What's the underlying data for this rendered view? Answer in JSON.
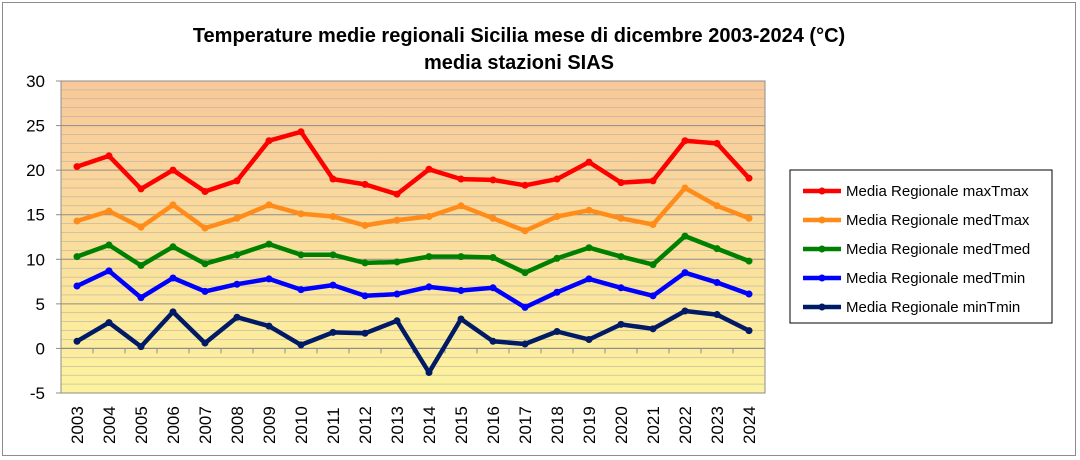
{
  "chart_data": {
    "type": "line",
    "title": "Temperature medie regionali Sicilia mese di dicembre 2003-2024 (°C)",
    "subtitle": "media stazioni SIAS",
    "xlabel": "",
    "ylabel": "",
    "ylim": [
      -5,
      30
    ],
    "yticks": [
      -5,
      0,
      5,
      10,
      15,
      20,
      25,
      30
    ],
    "grid": "horizontal",
    "legend_position": "right",
    "background": "gradient orange to yellow",
    "categories": [
      "2003",
      "2004",
      "2005",
      "2006",
      "2007",
      "2008",
      "2009",
      "2010",
      "2011",
      "2012",
      "2013",
      "2014",
      "2015",
      "2016",
      "2017",
      "2018",
      "2019",
      "2020",
      "2021",
      "2022",
      "2023",
      "2024"
    ],
    "series": [
      {
        "name": "Media Regionale maxTmax",
        "color": "#ff0000",
        "values": [
          20.4,
          21.6,
          17.9,
          20.0,
          17.6,
          18.8,
          23.3,
          24.3,
          19.0,
          18.4,
          17.3,
          20.1,
          19.0,
          18.9,
          18.3,
          19.0,
          20.9,
          18.6,
          18.8,
          23.3,
          23.0,
          19.1
        ]
      },
      {
        "name": "Media Regionale medTmax",
        "color": "#ff8c1a",
        "values": [
          14.3,
          15.4,
          13.6,
          16.1,
          13.5,
          14.6,
          16.1,
          15.1,
          14.8,
          13.8,
          14.4,
          14.8,
          16.0,
          14.6,
          13.2,
          14.8,
          15.5,
          14.6,
          13.9,
          18.0,
          16.0,
          14.6
        ]
      },
      {
        "name": "Media Regionale medTmed",
        "color": "#008000",
        "values": [
          10.3,
          11.6,
          9.3,
          11.4,
          9.5,
          10.5,
          11.7,
          10.5,
          10.5,
          9.6,
          9.7,
          10.3,
          10.3,
          10.2,
          8.5,
          10.1,
          11.3,
          10.3,
          9.4,
          12.6,
          11.2,
          9.8
        ]
      },
      {
        "name": "Media Regionale medTmin",
        "color": "#0000ff",
        "values": [
          7.0,
          8.7,
          5.7,
          7.9,
          6.4,
          7.2,
          7.8,
          6.6,
          7.1,
          5.9,
          6.1,
          6.9,
          6.5,
          6.8,
          4.6,
          6.3,
          7.8,
          6.8,
          5.9,
          8.5,
          7.4,
          6.1
        ]
      },
      {
        "name": "Media Regionale minTmin",
        "color": "#001a66",
        "values": [
          0.8,
          2.9,
          0.2,
          4.1,
          0.6,
          3.5,
          2.5,
          0.4,
          1.8,
          1.7,
          3.1,
          -2.7,
          3.3,
          0.8,
          0.5,
          1.9,
          1.0,
          2.7,
          2.2,
          4.2,
          3.8,
          2.0
        ]
      }
    ]
  }
}
